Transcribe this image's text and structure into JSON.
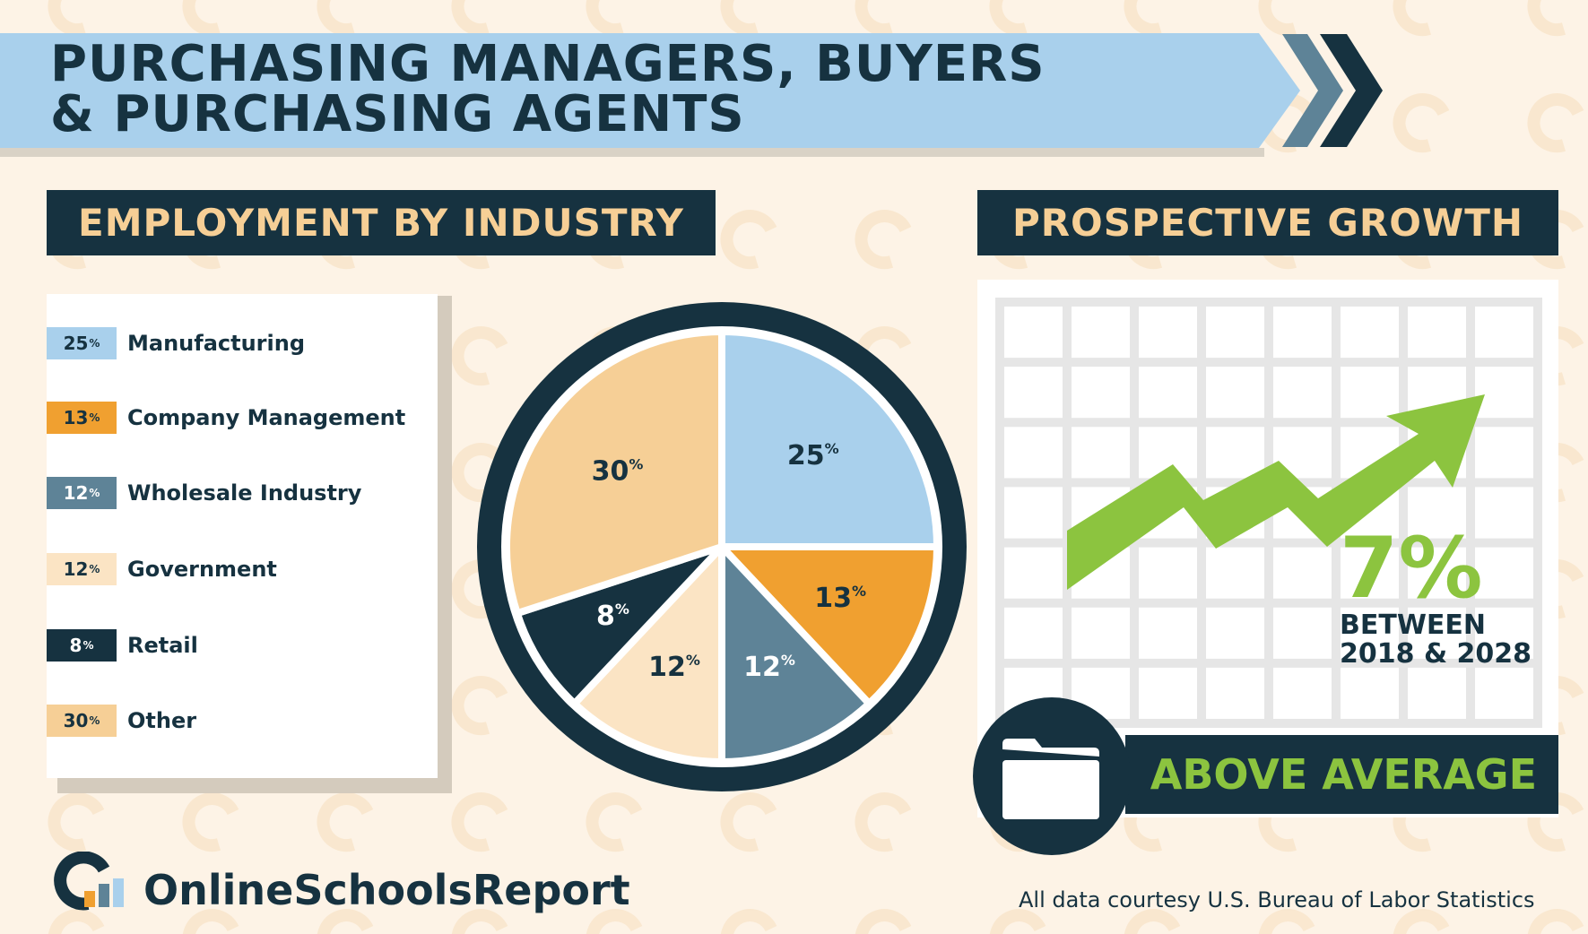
{
  "header": {
    "title_line1": "PURCHASING MANAGERS, BUYERS",
    "title_line2": "& PURCHASING AGENTS"
  },
  "sections": {
    "employment": "EMPLOYMENT BY INDUSTRY",
    "growth": "PROSPECTIVE GROWTH"
  },
  "chart_data": {
    "type": "pie",
    "title": "EMPLOYMENT BY INDUSTRY",
    "categories": [
      "Manufacturing",
      "Company Management",
      "Wholesale Industry",
      "Government",
      "Retail",
      "Other"
    ],
    "values": [
      25,
      13,
      12,
      12,
      8,
      30
    ],
    "labels": [
      "25%",
      "13%",
      "12%",
      "12%",
      "8%",
      "30%"
    ],
    "colors": [
      "#a9d0ec",
      "#f0a030",
      "#5e8397",
      "#fbe4c4",
      "#163240",
      "#f6cf96"
    ],
    "label_colors": [
      "#163240",
      "#163240",
      "#ffffff",
      "#163240",
      "#ffffff",
      "#163240"
    ]
  },
  "growth": {
    "percent": "7%",
    "between": "BETWEEN",
    "years": "2018 & 2028",
    "rating": "ABOVE AVERAGE"
  },
  "footer": {
    "logo": "OnlineSchoolsReport",
    "credit": "All data courtesy U.S. Bureau of Labor Statistics"
  }
}
